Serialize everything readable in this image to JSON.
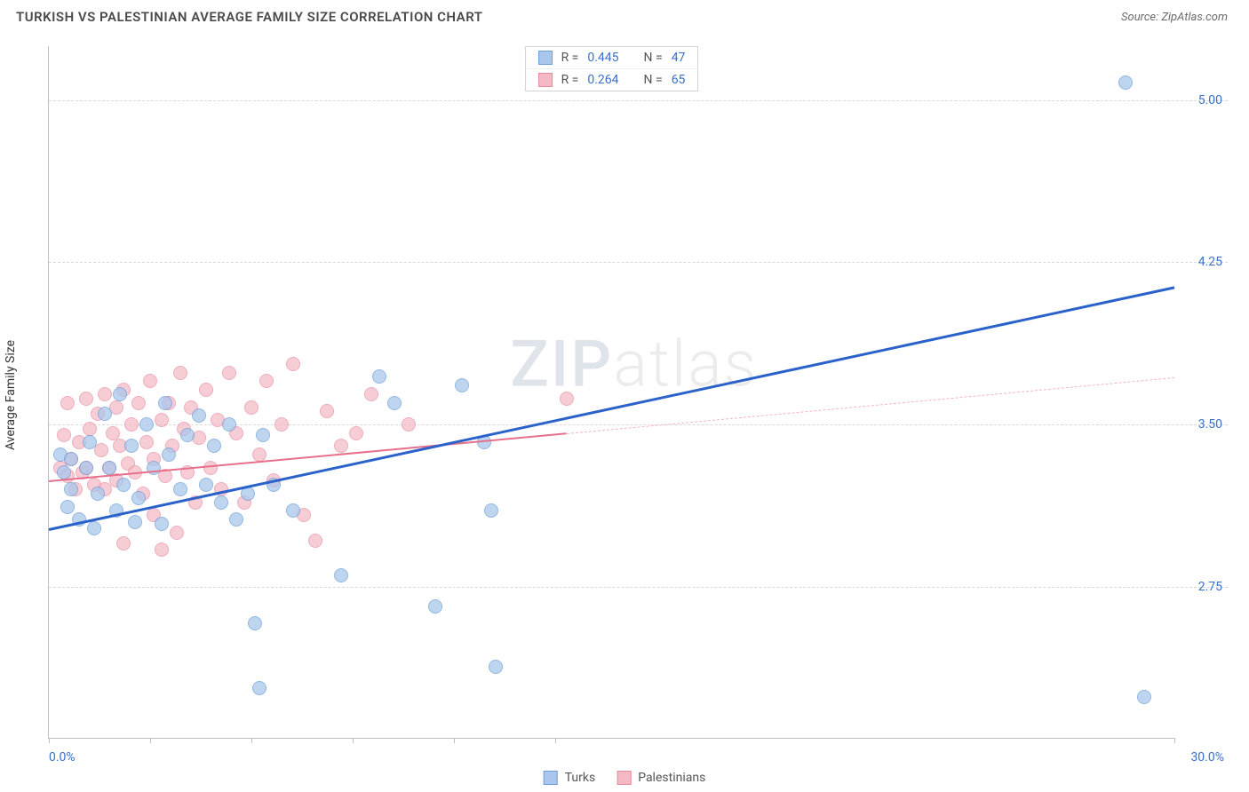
{
  "header": {
    "title": "TURKISH VS PALESTINIAN AVERAGE FAMILY SIZE CORRELATION CHART",
    "source_prefix": "Source: ",
    "source_name": "ZipAtlas.com"
  },
  "watermark": {
    "z": "ZIP",
    "rest": "atlas"
  },
  "axes": {
    "ylabel": "Average Family Size",
    "xlim": [
      0,
      30
    ],
    "ylim": [
      2.05,
      5.25
    ],
    "yticks": [
      2.75,
      3.5,
      4.25,
      5.0
    ],
    "ytick_labels": [
      "2.75",
      "3.50",
      "4.25",
      "5.00"
    ],
    "xtick_positions_pct": [
      0,
      9,
      18,
      27,
      36,
      45,
      100
    ],
    "x_min_label": "0.0%",
    "x_max_label": "30.0%",
    "grid_color": "#d9d9d9",
    "axis_color": "#bfbfbf",
    "tick_label_color": "#3b6fc9"
  },
  "series": {
    "turks": {
      "label": "Turks",
      "color_fill": "#a9c7ec",
      "color_stroke": "#6f9fd8",
      "r_label": "R =",
      "r_value": "0.445",
      "n_label": "N =",
      "n_value": "47",
      "point_radius": 8,
      "point_opacity": 0.75,
      "trend": {
        "x1": 0,
        "y1": 3.02,
        "x2": 30,
        "y2": 4.14,
        "solid_until_x": 30,
        "color": "#2a62c9",
        "width": 3
      },
      "points": [
        [
          0.3,
          3.36
        ],
        [
          0.4,
          3.28
        ],
        [
          0.5,
          3.12
        ],
        [
          0.6,
          3.2
        ],
        [
          0.6,
          3.34
        ],
        [
          0.8,
          3.06
        ],
        [
          1.0,
          3.3
        ],
        [
          1.1,
          3.42
        ],
        [
          1.2,
          3.02
        ],
        [
          1.3,
          3.18
        ],
        [
          1.5,
          3.55
        ],
        [
          1.6,
          3.3
        ],
        [
          1.8,
          3.1
        ],
        [
          1.9,
          3.64
        ],
        [
          2.0,
          3.22
        ],
        [
          2.2,
          3.4
        ],
        [
          2.3,
          3.05
        ],
        [
          2.4,
          3.16
        ],
        [
          2.6,
          3.5
        ],
        [
          2.8,
          3.3
        ],
        [
          3.0,
          3.04
        ],
        [
          3.1,
          3.6
        ],
        [
          3.2,
          3.36
        ],
        [
          3.5,
          3.2
        ],
        [
          3.7,
          3.45
        ],
        [
          4.0,
          3.54
        ],
        [
          4.2,
          3.22
        ],
        [
          4.4,
          3.4
        ],
        [
          4.6,
          3.14
        ],
        [
          4.8,
          3.5
        ],
        [
          5.0,
          3.06
        ],
        [
          5.3,
          3.18
        ],
        [
          5.5,
          2.58
        ],
        [
          5.6,
          2.28
        ],
        [
          5.7,
          3.45
        ],
        [
          6.0,
          3.22
        ],
        [
          6.5,
          3.1
        ],
        [
          7.8,
          2.8
        ],
        [
          8.8,
          3.72
        ],
        [
          9.2,
          3.6
        ],
        [
          10.3,
          2.66
        ],
        [
          11.0,
          3.68
        ],
        [
          11.6,
          3.42
        ],
        [
          11.8,
          3.1
        ],
        [
          11.9,
          2.38
        ],
        [
          28.7,
          5.08
        ],
        [
          29.2,
          2.24
        ]
      ]
    },
    "palestinians": {
      "label": "Palestinians",
      "color_fill": "#f4b9c4",
      "color_stroke": "#e78aa0",
      "r_label": "R =",
      "r_value": "0.264",
      "n_label": "N =",
      "n_value": "65",
      "point_radius": 8,
      "point_opacity": 0.7,
      "trend": {
        "x1": 0,
        "y1": 3.24,
        "x2": 30,
        "y2": 3.72,
        "solid_until_x": 13.8,
        "color": "#e76f8b",
        "width": 2,
        "dash_color": "#f6b4c1"
      },
      "points": [
        [
          0.3,
          3.3
        ],
        [
          0.4,
          3.45
        ],
        [
          0.5,
          3.26
        ],
        [
          0.5,
          3.6
        ],
        [
          0.6,
          3.34
        ],
        [
          0.7,
          3.2
        ],
        [
          0.8,
          3.42
        ],
        [
          0.9,
          3.28
        ],
        [
          1.0,
          3.62
        ],
        [
          1.0,
          3.3
        ],
        [
          1.1,
          3.48
        ],
        [
          1.2,
          3.22
        ],
        [
          1.3,
          3.55
        ],
        [
          1.4,
          3.38
        ],
        [
          1.5,
          3.2
        ],
        [
          1.5,
          3.64
        ],
        [
          1.6,
          3.3
        ],
        [
          1.7,
          3.46
        ],
        [
          1.8,
          3.24
        ],
        [
          1.8,
          3.58
        ],
        [
          1.9,
          3.4
        ],
        [
          2.0,
          3.66
        ],
        [
          2.0,
          2.95
        ],
        [
          2.1,
          3.32
        ],
        [
          2.2,
          3.5
        ],
        [
          2.3,
          3.28
        ],
        [
          2.4,
          3.6
        ],
        [
          2.5,
          3.18
        ],
        [
          2.6,
          3.42
        ],
        [
          2.7,
          3.7
        ],
        [
          2.8,
          3.08
        ],
        [
          2.8,
          3.34
        ],
        [
          3.0,
          3.52
        ],
        [
          3.0,
          2.92
        ],
        [
          3.1,
          3.26
        ],
        [
          3.2,
          3.6
        ],
        [
          3.3,
          3.4
        ],
        [
          3.4,
          3.0
        ],
        [
          3.5,
          3.74
        ],
        [
          3.6,
          3.48
        ],
        [
          3.7,
          3.28
        ],
        [
          3.8,
          3.58
        ],
        [
          3.9,
          3.14
        ],
        [
          4.0,
          3.44
        ],
        [
          4.2,
          3.66
        ],
        [
          4.3,
          3.3
        ],
        [
          4.5,
          3.52
        ],
        [
          4.6,
          3.2
        ],
        [
          4.8,
          3.74
        ],
        [
          5.0,
          3.46
        ],
        [
          5.2,
          3.14
        ],
        [
          5.4,
          3.58
        ],
        [
          5.6,
          3.36
        ],
        [
          5.8,
          3.7
        ],
        [
          6.0,
          3.24
        ],
        [
          6.2,
          3.5
        ],
        [
          6.5,
          3.78
        ],
        [
          6.8,
          3.08
        ],
        [
          7.1,
          2.96
        ],
        [
          7.4,
          3.56
        ],
        [
          7.8,
          3.4
        ],
        [
          8.2,
          3.46
        ],
        [
          8.6,
          3.64
        ],
        [
          9.6,
          3.5
        ],
        [
          13.8,
          3.62
        ]
      ]
    }
  },
  "legend_bottom": [
    {
      "key": "turks"
    },
    {
      "key": "palestinians"
    }
  ]
}
